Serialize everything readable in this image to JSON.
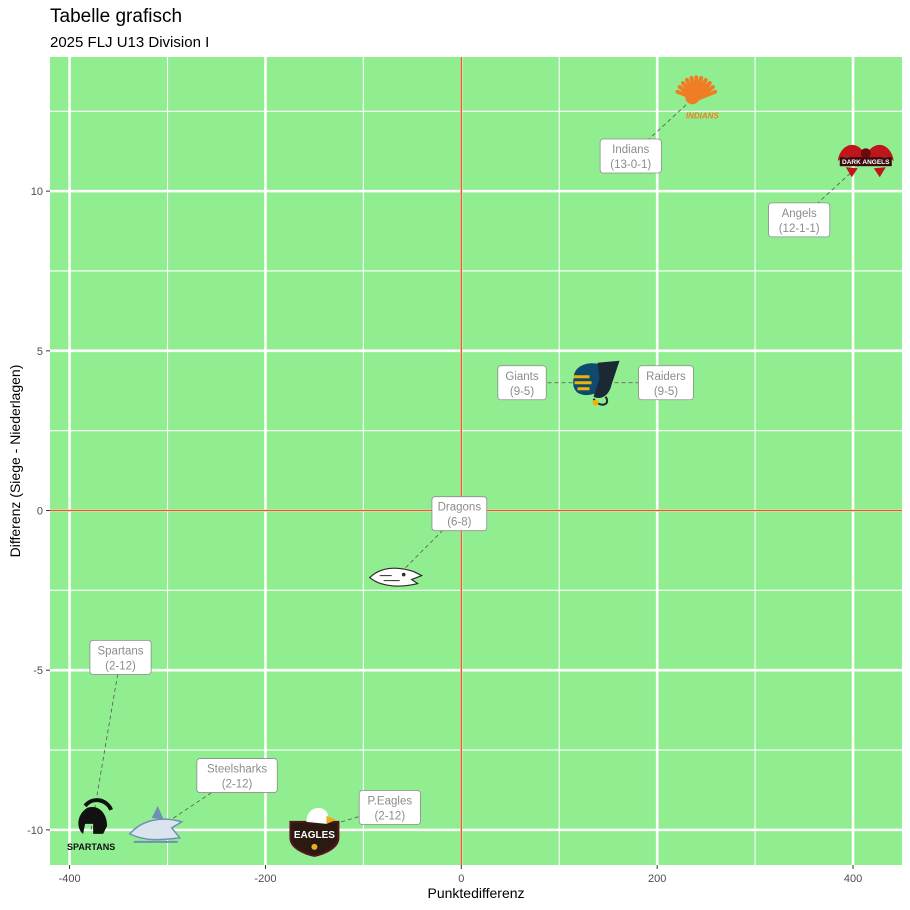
{
  "chart_data": {
    "type": "scatter",
    "title": "Tabelle grafisch",
    "subtitle": "2025 FLJ U13 Division I",
    "xlabel": "Punktedifferenz",
    "ylabel": "Differenz (Siege - Niederlagen)",
    "xlim": [
      -420,
      450
    ],
    "ylim": [
      -11.1,
      14.2
    ],
    "x_ticks": [
      -400,
      -200,
      0,
      200,
      400
    ],
    "y_ticks": [
      -10,
      -5,
      0,
      5,
      10
    ],
    "x_tick_labels": [
      "-400",
      "-200",
      "0",
      "200",
      "400"
    ],
    "y_tick_labels": [
      "-10",
      "-5",
      "0",
      "5",
      "10"
    ],
    "background": "#90EE90",
    "grid": true,
    "reference_lines": {
      "x": 0,
      "y": 0,
      "color": "#d2691e"
    },
    "points": [
      {
        "team": "Indians",
        "record": "(13-0-1)",
        "x": 240,
        "y": 13,
        "label_x": 173,
        "label_y": 11.1,
        "logo_color": "#f07d23",
        "logo_text": "INDIANS"
      },
      {
        "team": "Angels",
        "record": "(12-1-1)",
        "x": 413,
        "y": 11,
        "label_x": 345,
        "label_y": 9.1,
        "logo_color": "#c0161b",
        "logo_text": "DARK ANGELS"
      },
      {
        "team": "Giants",
        "record": "(9-5)",
        "x": 135,
        "y": 4,
        "label_x": 62,
        "label_y": 4,
        "logo_color": "#0e4a6e",
        "logo_text": ""
      },
      {
        "team": "Raiders",
        "record": "(9-5)",
        "x": 135,
        "y": 4,
        "label_x": 209,
        "label_y": 4,
        "logo_color": "#f0b400",
        "logo_text": ""
      },
      {
        "team": "Dragons",
        "record": "(6-8)",
        "x": -67,
        "y": -2.1,
        "label_x": -2,
        "label_y": -0.1,
        "logo_color": "#9aa0a6",
        "logo_text": ""
      },
      {
        "team": "Spartans",
        "record": "(2-12)",
        "x": -378,
        "y": -10,
        "label_x": -348,
        "label_y": -4.6,
        "logo_color": "#111111",
        "logo_text": "SPARTANS"
      },
      {
        "team": "Steelsharks",
        "record": "(2-12)",
        "x": -312,
        "y": -10,
        "label_x": -229,
        "label_y": -8.3,
        "logo_color": "#6f8fb3",
        "logo_text": "STEELSHARKS"
      },
      {
        "team": "P.Eagles",
        "record": "(2-12)",
        "x": -150,
        "y": -10,
        "label_x": -73,
        "label_y": -9.3,
        "logo_color": "#5a1420",
        "logo_text": "EAGLES"
      }
    ]
  }
}
